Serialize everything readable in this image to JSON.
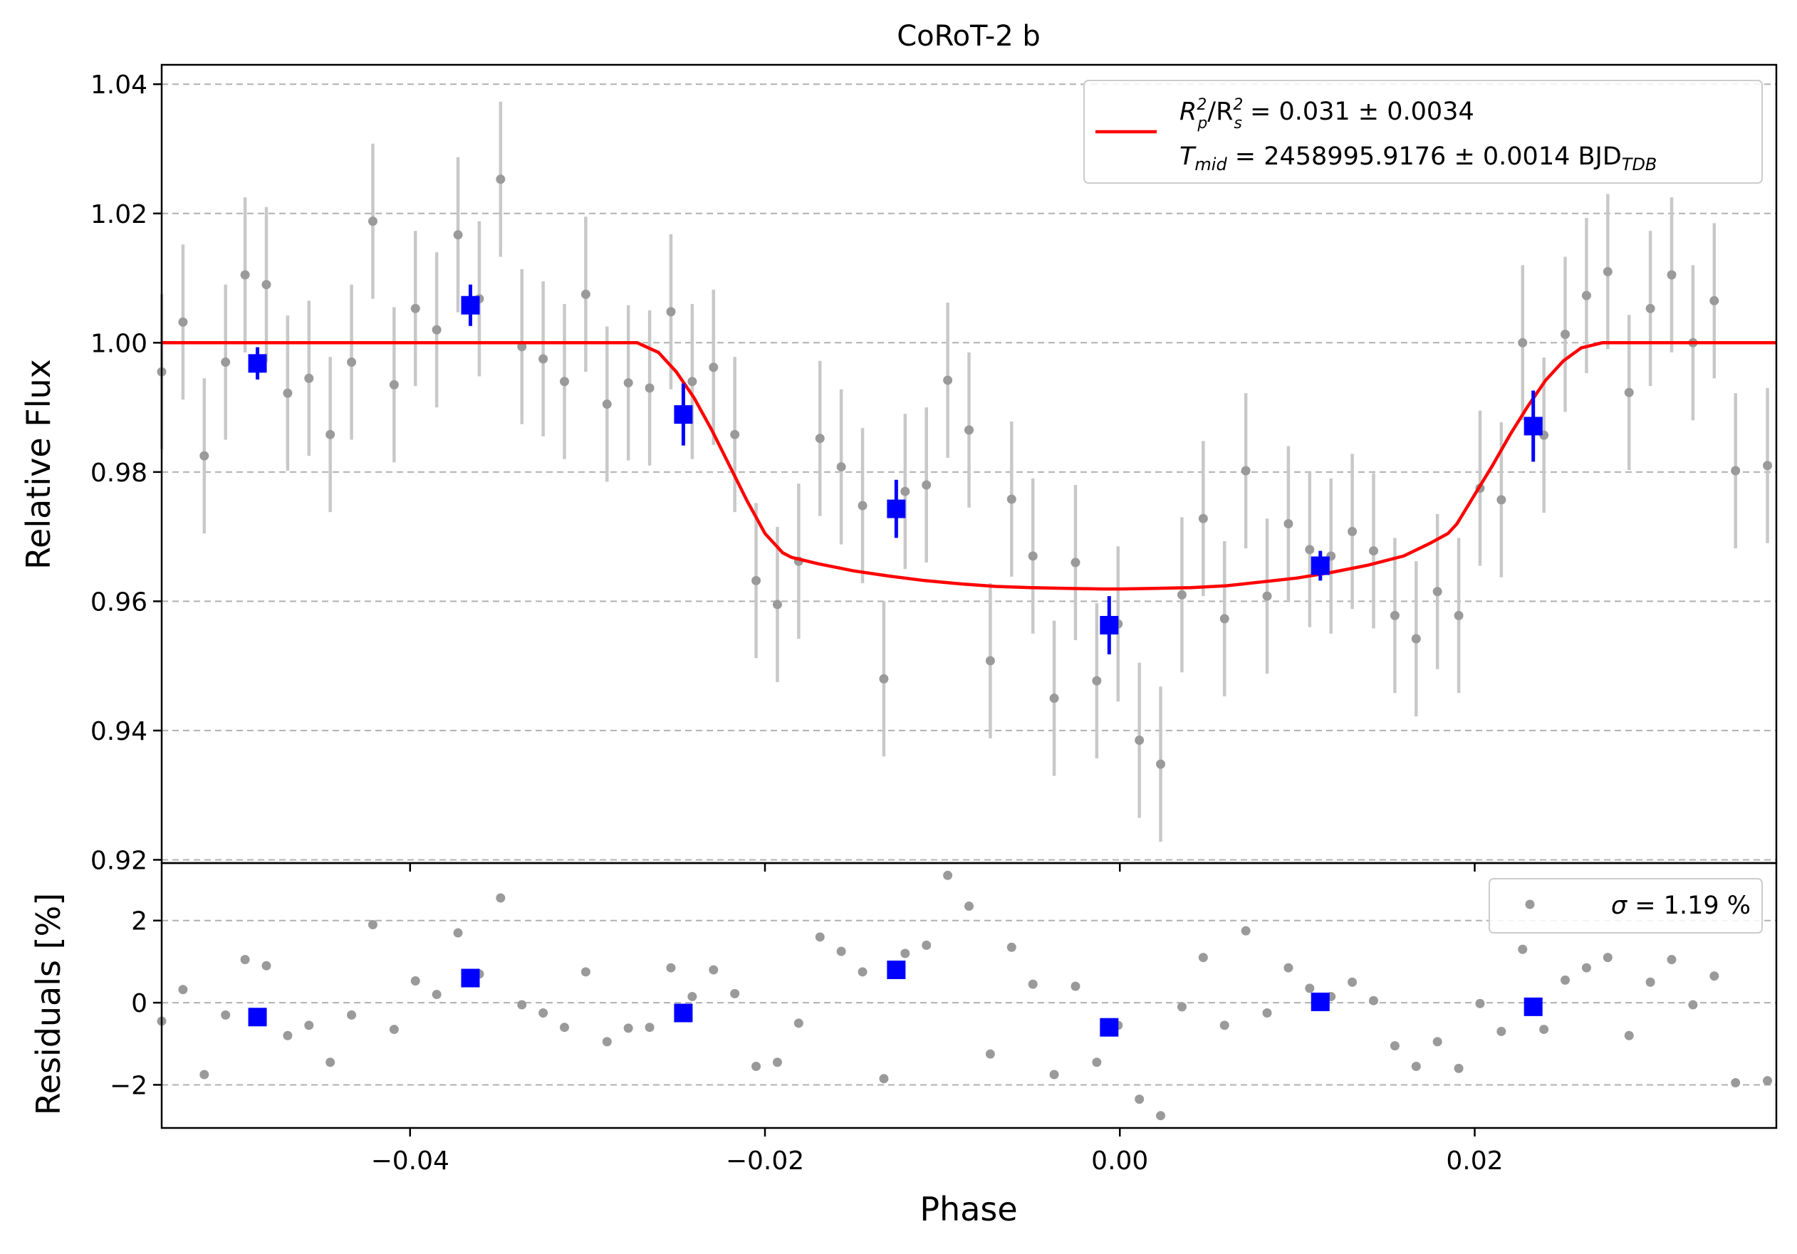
{
  "chart_data": {
    "type": "scatter",
    "title": "CoRoT-2 b",
    "xlabel": "Phase",
    "xlim": [
      -0.054,
      0.037
    ],
    "grid": "horizontal dashed",
    "panels": {
      "flux": {
        "ylabel": "Relative Flux",
        "ylim": [
          0.9195,
          1.043
        ],
        "yticks": [
          0.92,
          0.94,
          0.96,
          0.98,
          1.0,
          1.02,
          1.04
        ],
        "ytick_labels": [
          "0.92",
          "0.94",
          "0.96",
          "0.98",
          "1.00",
          "1.02",
          "1.04"
        ],
        "legend_position": "top-right",
        "legend": {
          "line1": {
            "a": "R",
            "a_sup": "2",
            "a_sub": "p",
            "b": "/R",
            "b_sup": "2",
            "b_sub": "s",
            "rest": " = 0.031 ± 0.0034"
          },
          "line2": {
            "a": "T",
            "a_sub": "mid",
            "rest": " = 2458995.9176 ± 0.0014 BJD",
            "rest_sub": "TDB"
          }
        }
      },
      "residuals": {
        "ylabel": "Residuals [%]",
        "ylim": [
          -3.05,
          3.4
        ],
        "yticks": [
          -2,
          0,
          2
        ],
        "ytick_labels": [
          "−2",
          "0",
          "2"
        ],
        "legend_position": "top-right",
        "legend": {
          "sym": "σ",
          "rest": " = 1.19 %"
        }
      }
    },
    "xticks": [
      -0.04,
      -0.02,
      0.0,
      0.02
    ],
    "xtick_labels": [
      "−0.04",
      "−0.02",
      "0.00",
      "0.02"
    ],
    "colors": {
      "data": "#9a9a9a",
      "errorbar": "#c8c8c8",
      "model": "#ff0000",
      "binned": "#0000ff",
      "grid": "#b0b0b0"
    },
    "model": {
      "phase": [
        -0.054,
        -0.0272,
        -0.026,
        -0.025,
        -0.024,
        -0.023,
        -0.022,
        -0.021,
        -0.02,
        -0.019,
        -0.0185,
        -0.017,
        -0.015,
        -0.013,
        -0.011,
        -0.009,
        -0.007,
        -0.005,
        -0.003,
        -0.001,
        0.0,
        0.002,
        0.004,
        0.006,
        0.008,
        0.01,
        0.012,
        0.014,
        0.016,
        0.0175,
        0.0185,
        0.019,
        0.02,
        0.021,
        0.022,
        0.023,
        0.024,
        0.025,
        0.026,
        0.0272,
        0.037
      ],
      "flux": [
        1.0,
        1.0,
        0.9985,
        0.9955,
        0.9915,
        0.9865,
        0.981,
        0.9755,
        0.9705,
        0.9675,
        0.9668,
        0.9658,
        0.9647,
        0.9639,
        0.9632,
        0.9627,
        0.9623,
        0.9621,
        0.962,
        0.9619,
        0.9619,
        0.962,
        0.9621,
        0.9624,
        0.963,
        0.9636,
        0.9645,
        0.9656,
        0.967,
        0.969,
        0.9705,
        0.972,
        0.9765,
        0.981,
        0.9858,
        0.9902,
        0.9942,
        0.9972,
        0.9992,
        1.0,
        1.0
      ]
    },
    "unbinned": [
      {
        "phase": -0.054,
        "flux": 0.9955,
        "err": 0.012,
        "resid": -0.45
      },
      {
        "phase": -0.0528,
        "flux": 1.0032,
        "err": 0.012,
        "resid": 0.32
      },
      {
        "phase": -0.0516,
        "flux": 0.9825,
        "err": 0.012,
        "resid": -1.75
      },
      {
        "phase": -0.0504,
        "flux": 0.997,
        "err": 0.012,
        "resid": -0.3
      },
      {
        "phase": -0.0493,
        "flux": 1.0105,
        "err": 0.012,
        "resid": 1.05
      },
      {
        "phase": -0.0481,
        "flux": 1.009,
        "err": 0.012,
        "resid": 0.9
      },
      {
        "phase": -0.0469,
        "flux": 0.9922,
        "err": 0.012,
        "resid": -0.8
      },
      {
        "phase": -0.0457,
        "flux": 0.9945,
        "err": 0.012,
        "resid": -0.55
      },
      {
        "phase": -0.0445,
        "flux": 0.9858,
        "err": 0.012,
        "resid": -1.45
      },
      {
        "phase": -0.0433,
        "flux": 0.997,
        "err": 0.012,
        "resid": -0.3
      },
      {
        "phase": -0.0421,
        "flux": 1.0188,
        "err": 0.012,
        "resid": 1.9
      },
      {
        "phase": -0.0409,
        "flux": 0.9935,
        "err": 0.012,
        "resid": -0.65
      },
      {
        "phase": -0.0397,
        "flux": 1.0053,
        "err": 0.012,
        "resid": 0.53
      },
      {
        "phase": -0.0385,
        "flux": 1.002,
        "err": 0.012,
        "resid": 0.2
      },
      {
        "phase": -0.0373,
        "flux": 1.0167,
        "err": 0.012,
        "resid": 1.7
      },
      {
        "phase": -0.0361,
        "flux": 1.0068,
        "err": 0.012,
        "resid": 0.7
      },
      {
        "phase": -0.0349,
        "flux": 1.0253,
        "err": 0.012,
        "resid": 2.55
      },
      {
        "phase": -0.0337,
        "flux": 0.9994,
        "err": 0.012,
        "resid": -0.05
      },
      {
        "phase": -0.0325,
        "flux": 0.9975,
        "err": 0.012,
        "resid": -0.25
      },
      {
        "phase": -0.0313,
        "flux": 0.994,
        "err": 0.012,
        "resid": -0.6
      },
      {
        "phase": -0.0301,
        "flux": 1.0075,
        "err": 0.012,
        "resid": 0.75
      },
      {
        "phase": -0.0289,
        "flux": 0.9905,
        "err": 0.012,
        "resid": -0.95
      },
      {
        "phase": -0.0277,
        "flux": 0.9938,
        "err": 0.012,
        "resid": -0.62
      },
      {
        "phase": -0.0265,
        "flux": 0.993,
        "err": 0.012,
        "resid": -0.6
      },
      {
        "phase": -0.0253,
        "flux": 1.0048,
        "err": 0.012,
        "resid": 0.85
      },
      {
        "phase": -0.0241,
        "flux": 0.994,
        "err": 0.012,
        "resid": 0.15
      },
      {
        "phase": -0.0229,
        "flux": 0.9962,
        "err": 0.012,
        "resid": 0.8
      },
      {
        "phase": -0.0217,
        "flux": 0.9858,
        "err": 0.012,
        "resid": 0.22
      },
      {
        "phase": -0.0205,
        "flux": 0.9632,
        "err": 0.012,
        "resid": -1.55
      },
      {
        "phase": -0.0193,
        "flux": 0.9595,
        "err": 0.012,
        "resid": -1.45
      },
      {
        "phase": -0.0181,
        "flux": 0.9662,
        "err": 0.012,
        "resid": -0.5
      },
      {
        "phase": -0.0169,
        "flux": 0.9852,
        "err": 0.012,
        "resid": 1.6
      },
      {
        "phase": -0.0157,
        "flux": 0.9808,
        "err": 0.012,
        "resid": 1.25
      },
      {
        "phase": -0.0145,
        "flux": 0.9748,
        "err": 0.012,
        "resid": 0.75
      },
      {
        "phase": -0.0133,
        "flux": 0.948,
        "err": 0.012,
        "resid": -1.85
      },
      {
        "phase": -0.0121,
        "flux": 0.977,
        "err": 0.012,
        "resid": 1.2
      },
      {
        "phase": -0.0109,
        "flux": 0.978,
        "err": 0.012,
        "resid": 1.4
      },
      {
        "phase": -0.0097,
        "flux": 0.9942,
        "err": 0.012,
        "resid": 3.1
      },
      {
        "phase": -0.0085,
        "flux": 0.9865,
        "err": 0.012,
        "resid": 2.35
      },
      {
        "phase": -0.0073,
        "flux": 0.9508,
        "err": 0.012,
        "resid": -1.25
      },
      {
        "phase": -0.0061,
        "flux": 0.9758,
        "err": 0.012,
        "resid": 1.35
      },
      {
        "phase": -0.0049,
        "flux": 0.967,
        "err": 0.012,
        "resid": 0.45
      },
      {
        "phase": -0.0037,
        "flux": 0.945,
        "err": 0.012,
        "resid": -1.75
      },
      {
        "phase": -0.0025,
        "flux": 0.966,
        "err": 0.012,
        "resid": 0.4
      },
      {
        "phase": -0.0013,
        "flux": 0.9477,
        "err": 0.012,
        "resid": -1.45
      },
      {
        "phase": -0.0001,
        "flux": 0.9565,
        "err": 0.012,
        "resid": -0.55
      },
      {
        "phase": 0.0011,
        "flux": 0.9385,
        "err": 0.012,
        "resid": -2.35
      },
      {
        "phase": 0.0023,
        "flux": 0.9348,
        "err": 0.012,
        "resid": -2.75
      },
      {
        "phase": 0.0035,
        "flux": 0.961,
        "err": 0.012,
        "resid": -0.1
      },
      {
        "phase": 0.0047,
        "flux": 0.9728,
        "err": 0.012,
        "resid": 1.1
      },
      {
        "phase": 0.0059,
        "flux": 0.9573,
        "err": 0.012,
        "resid": -0.55
      },
      {
        "phase": 0.0071,
        "flux": 0.9802,
        "err": 0.012,
        "resid": 1.75
      },
      {
        "phase": 0.0083,
        "flux": 0.9608,
        "err": 0.012,
        "resid": -0.25
      },
      {
        "phase": 0.0095,
        "flux": 0.972,
        "err": 0.012,
        "resid": 0.85
      },
      {
        "phase": 0.0107,
        "flux": 0.968,
        "err": 0.012,
        "resid": 0.35
      },
      {
        "phase": 0.0119,
        "flux": 0.967,
        "err": 0.012,
        "resid": 0.15
      },
      {
        "phase": 0.0131,
        "flux": 0.9708,
        "err": 0.012,
        "resid": 0.5
      },
      {
        "phase": 0.0143,
        "flux": 0.9678,
        "err": 0.012,
        "resid": 0.05
      },
      {
        "phase": 0.0155,
        "flux": 0.9578,
        "err": 0.012,
        "resid": -1.05
      },
      {
        "phase": 0.0167,
        "flux": 0.9542,
        "err": 0.012,
        "resid": -1.55
      },
      {
        "phase": 0.0179,
        "flux": 0.9615,
        "err": 0.012,
        "resid": -0.95
      },
      {
        "phase": 0.0191,
        "flux": 0.9578,
        "err": 0.012,
        "resid": -1.6
      },
      {
        "phase": 0.0203,
        "flux": 0.9775,
        "err": 0.012,
        "resid": -0.02
      },
      {
        "phase": 0.0215,
        "flux": 0.9757,
        "err": 0.012,
        "resid": -0.7
      },
      {
        "phase": 0.0227,
        "flux": 1.0,
        "err": 0.012,
        "resid": 1.3
      },
      {
        "phase": 0.0239,
        "flux": 0.9857,
        "err": 0.012,
        "resid": -0.65
      },
      {
        "phase": 0.0251,
        "flux": 1.0013,
        "err": 0.012,
        "resid": 0.55
      },
      {
        "phase": 0.0263,
        "flux": 1.0073,
        "err": 0.012,
        "resid": 0.85
      },
      {
        "phase": 0.0275,
        "flux": 1.011,
        "err": 0.012,
        "resid": 1.1
      },
      {
        "phase": 0.0287,
        "flux": 0.9923,
        "err": 0.012,
        "resid": -0.8
      },
      {
        "phase": 0.0299,
        "flux": 1.0053,
        "err": 0.012,
        "resid": 0.5
      },
      {
        "phase": 0.0311,
        "flux": 1.0105,
        "err": 0.012,
        "resid": 1.05
      },
      {
        "phase": 0.0323,
        "flux": 1.0,
        "err": 0.012,
        "resid": -0.05
      },
      {
        "phase": 0.0335,
        "flux": 1.0065,
        "err": 0.012,
        "resid": 0.65
      },
      {
        "phase": 0.0347,
        "flux": 0.9802,
        "err": 0.012,
        "resid": -1.95
      },
      {
        "phase": 0.0365,
        "flux": 0.981,
        "err": 0.012,
        "resid": -1.9
      }
    ],
    "binned": [
      {
        "phase": -0.0486,
        "flux": 0.9968,
        "err": 0.0025,
        "resid": -0.35
      },
      {
        "phase": -0.0366,
        "flux": 1.0058,
        "err": 0.0032,
        "resid": 0.6
      },
      {
        "phase": -0.0246,
        "flux": 0.9889,
        "err": 0.0048,
        "resid": -0.25
      },
      {
        "phase": -0.0126,
        "flux": 0.9743,
        "err": 0.0045,
        "resid": 0.8
      },
      {
        "phase": -0.0006,
        "flux": 0.9563,
        "err": 0.0045,
        "resid": -0.6
      },
      {
        "phase": 0.0113,
        "flux": 0.9655,
        "err": 0.0023,
        "resid": 0.02
      },
      {
        "phase": 0.0233,
        "flux": 0.9871,
        "err": 0.0055,
        "resid": -0.1
      }
    ]
  }
}
